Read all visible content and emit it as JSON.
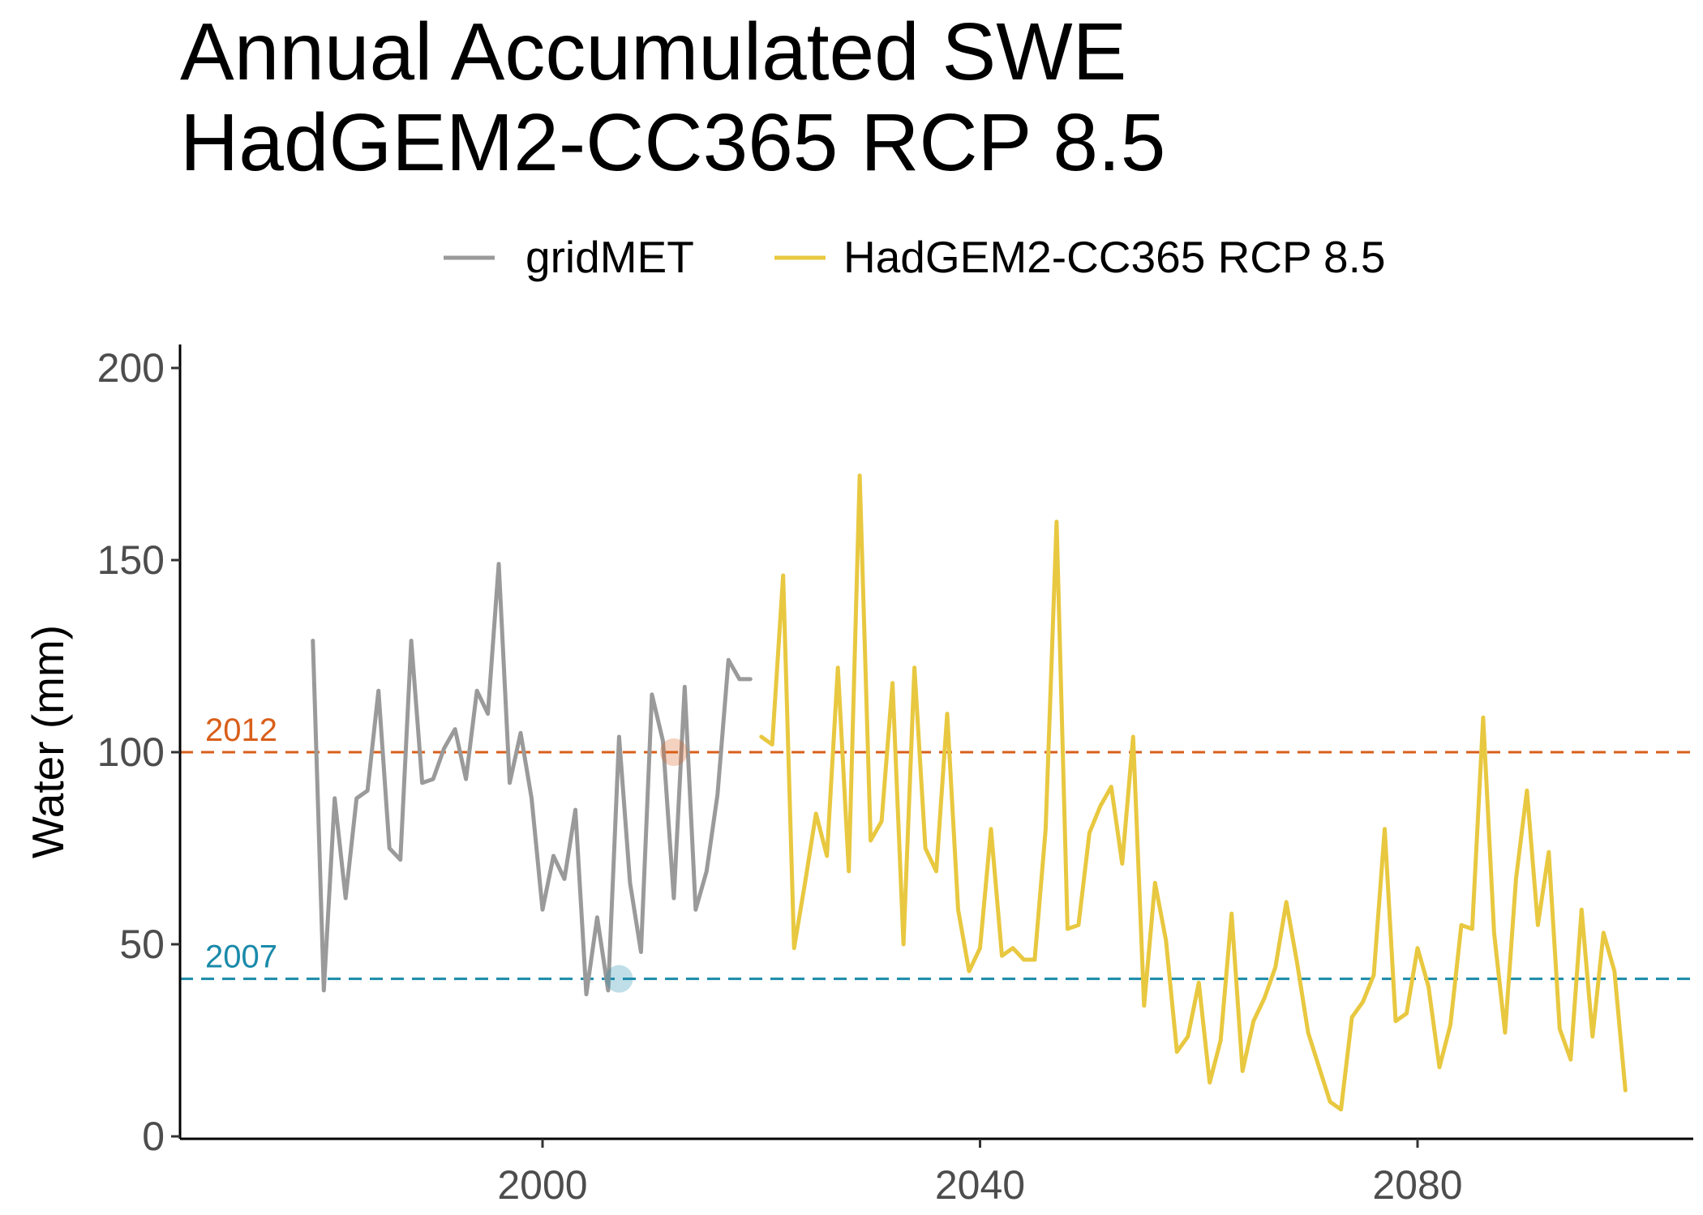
{
  "chart_data": {
    "type": "line",
    "title": [
      "Annual Accumulated SWE",
      "HadGEM2-CC365 RCP 8.5"
    ],
    "xlabel": "",
    "ylabel": "Water (mm)",
    "xlim": [
      1967,
      2105
    ],
    "ylim": [
      0,
      207
    ],
    "x_ticks": [
      2000,
      2040,
      2080
    ],
    "y_ticks": [
      0,
      50,
      100,
      150,
      200
    ],
    "grid": false,
    "legend_position": "top",
    "series": [
      {
        "name": "gridMET",
        "color": "#9a9a9a",
        "x": [
          1979,
          1980,
          1981,
          1982,
          1983,
          1984,
          1985,
          1986,
          1987,
          1988,
          1989,
          1990,
          1991,
          1992,
          1993,
          1994,
          1995,
          1996,
          1997,
          1998,
          1999,
          2000,
          2001,
          2002,
          2003,
          2004,
          2005,
          2006,
          2007,
          2008,
          2009,
          2010,
          2011,
          2012,
          2013,
          2014,
          2015,
          2016,
          2017,
          2018,
          2019
        ],
        "values": [
          129,
          38,
          88,
          62,
          88,
          90,
          116,
          75,
          72,
          129,
          92,
          93,
          101,
          106,
          93,
          116,
          110,
          149,
          92,
          105,
          88,
          59,
          73,
          67,
          85,
          37,
          57,
          38,
          104,
          66,
          48,
          115,
          103,
          62,
          117,
          59,
          69,
          89,
          124,
          119,
          119
        ]
      },
      {
        "name": "HadGEM2-CC365 RCP 8.5",
        "color": "#e8c840",
        "x": [
          2020,
          2021,
          2022,
          2023,
          2024,
          2025,
          2026,
          2027,
          2028,
          2029,
          2030,
          2031,
          2032,
          2033,
          2034,
          2035,
          2036,
          2037,
          2038,
          2039,
          2040,
          2041,
          2042,
          2043,
          2044,
          2045,
          2046,
          2047,
          2048,
          2049,
          2050,
          2051,
          2052,
          2053,
          2054,
          2055,
          2056,
          2057,
          2058,
          2059,
          2060,
          2061,
          2062,
          2063,
          2064,
          2065,
          2066,
          2067,
          2068,
          2069,
          2070,
          2071,
          2072,
          2073,
          2074,
          2075,
          2076,
          2077,
          2078,
          2079,
          2080,
          2081,
          2082,
          2083,
          2084,
          2085,
          2086,
          2087,
          2088,
          2089,
          2090,
          2091,
          2092,
          2093,
          2094,
          2095,
          2096,
          2097,
          2098,
          2099
        ],
        "values": [
          104,
          102,
          146,
          49,
          66,
          84,
          73,
          122,
          69,
          172,
          77,
          82,
          118,
          50,
          122,
          75,
          69,
          110,
          59,
          43,
          49,
          80,
          47,
          49,
          46,
          46,
          80,
          160,
          54,
          55,
          79,
          86,
          91,
          71,
          104,
          34,
          66,
          51,
          22,
          26,
          40,
          14,
          25,
          58,
          17,
          30,
          36,
          44,
          61,
          45,
          27,
          18,
          9,
          7,
          31,
          35,
          42,
          80,
          30,
          32,
          49,
          39,
          18,
          29,
          55,
          54,
          109,
          53,
          27,
          67,
          90,
          55,
          74,
          28,
          20,
          59,
          26,
          53,
          43,
          12
        ]
      }
    ],
    "reference_lines": [
      {
        "label": "2012",
        "value": 100,
        "color": "#d95f1a",
        "marker_x": 2012
      },
      {
        "label": "2007",
        "value": 41,
        "color": "#1a8aaa",
        "marker_x": 2007
      }
    ]
  }
}
